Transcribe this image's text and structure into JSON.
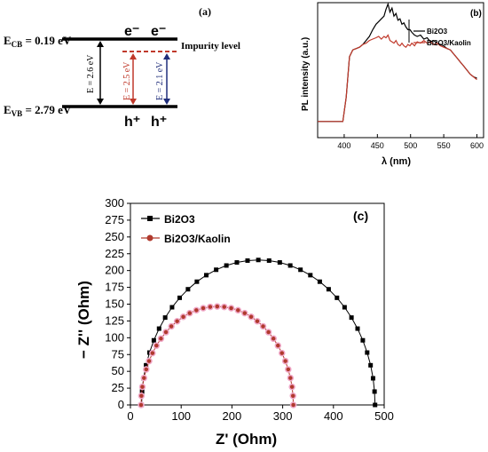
{
  "panel_a": {
    "tag": "(a)",
    "ecb_label": "E",
    "ecb_sub": "CB",
    "ecb_value": " = 0.19 eV",
    "evb_label": "E",
    "evb_sub": "VB",
    "evb_value": " = 2.79 eV",
    "impurity_label": "Impurity level",
    "electron_1": "e⁻",
    "electron_2": "e⁻",
    "hole_1": "h⁺",
    "hole_2": "h⁺",
    "gap_1": "E = 2.6 eV",
    "gap_2": "E = 2.5 eV",
    "gap_3": "E = 2.1 eV",
    "colors": {
      "gap_1": "#000000",
      "gap_2": "#c0392b",
      "gap_3": "#1f2d7a",
      "impurity": "#c0392b"
    }
  },
  "panel_b": {
    "tag": "(b)",
    "ylabel": "PL intensity (a.u.)",
    "xlabel": "λ (nm)",
    "x_ticks": [
      "400",
      "450",
      "500",
      "550",
      "600"
    ],
    "legend": [
      "Bi2O3",
      "Bi2O3/Kaolin"
    ]
  },
  "chart_data": [
    {
      "type": "line",
      "panel": "b",
      "xlabel": "λ (nm)",
      "ylabel": "PL intensity (a.u.)",
      "xlim": [
        360,
        610
      ],
      "series": [
        {
          "name": "Bi2O3",
          "color": "#000000",
          "x": [
            360,
            390,
            398,
            403,
            408,
            413,
            418,
            423,
            428,
            433,
            438,
            443,
            448,
            452,
            456,
            460,
            463,
            466,
            469,
            472,
            475,
            478,
            481,
            484,
            487,
            490,
            493,
            496,
            499,
            502,
            506,
            510,
            515,
            520,
            525,
            530,
            535,
            540,
            545,
            550,
            555,
            560,
            565,
            570,
            575,
            580,
            585,
            590,
            595,
            600
          ],
          "values": [
            0.12,
            0.12,
            0.12,
            0.3,
            0.6,
            0.65,
            0.66,
            0.67,
            0.69,
            0.72,
            0.75,
            0.8,
            0.84,
            0.86,
            0.88,
            0.9,
            0.95,
            0.99,
            0.93,
            0.96,
            0.9,
            0.92,
            0.87,
            0.88,
            0.84,
            0.85,
            0.82,
            0.8,
            0.8,
            0.78,
            0.76,
            0.75,
            0.76,
            0.73,
            0.74,
            0.71,
            0.72,
            0.7,
            0.69,
            0.68,
            0.66,
            0.65,
            0.62,
            0.59,
            0.56,
            0.53,
            0.5,
            0.47,
            0.45,
            0.44
          ]
        },
        {
          "name": "Bi2O3/Kaolin",
          "color": "#c0392b",
          "x": [
            360,
            390,
            398,
            403,
            408,
            413,
            418,
            423,
            428,
            433,
            438,
            443,
            448,
            452,
            456,
            460,
            463,
            466,
            469,
            472,
            475,
            478,
            481,
            484,
            487,
            490,
            493,
            496,
            499,
            502,
            506,
            510,
            515,
            520,
            525,
            530,
            535,
            540,
            545,
            550,
            555,
            560,
            565,
            570,
            575,
            580,
            585,
            590,
            595,
            600
          ],
          "values": [
            0.12,
            0.12,
            0.12,
            0.3,
            0.6,
            0.65,
            0.66,
            0.67,
            0.69,
            0.7,
            0.72,
            0.73,
            0.74,
            0.75,
            0.73,
            0.75,
            0.74,
            0.76,
            0.72,
            0.71,
            0.7,
            0.72,
            0.69,
            0.68,
            0.7,
            0.68,
            0.67,
            0.69,
            0.68,
            0.7,
            0.68,
            0.71,
            0.7,
            0.72,
            0.7,
            0.71,
            0.69,
            0.7,
            0.68,
            0.67,
            0.66,
            0.65,
            0.62,
            0.59,
            0.56,
            0.53,
            0.5,
            0.47,
            0.45,
            0.43
          ]
        }
      ]
    },
    {
      "type": "scatter",
      "panel": "c",
      "xlabel": "Z' (Ohm)",
      "ylabel": "− Z'' (Ohm)",
      "xlim": [
        0,
        500
      ],
      "ylim": [
        0,
        300
      ],
      "series": [
        {
          "name": "Bi2O3",
          "color": "#000000",
          "marker": "square",
          "center": 252,
          "radius": 230,
          "y_scale": 0.938,
          "points": 34
        },
        {
          "name": "Bi2O3/Kaolin",
          "color": "#b03a2e",
          "marker": "circle",
          "center": 171,
          "radius": 150,
          "y_scale": 0.977,
          "points": 34
        }
      ]
    }
  ],
  "panel_c": {
    "tag": "(c)",
    "xlabel": "Z' (Ohm)",
    "ylabel": "− Z'' (Ohm)",
    "x_ticks": [
      "0",
      "100",
      "200",
      "300",
      "400",
      "500"
    ],
    "y_ticks": [
      "0",
      "25",
      "50",
      "75",
      "100",
      "125",
      "150",
      "175",
      "200",
      "225",
      "250",
      "275",
      "300"
    ],
    "legend": [
      "Bi2O3",
      "Bi2O3/Kaolin"
    ]
  }
}
